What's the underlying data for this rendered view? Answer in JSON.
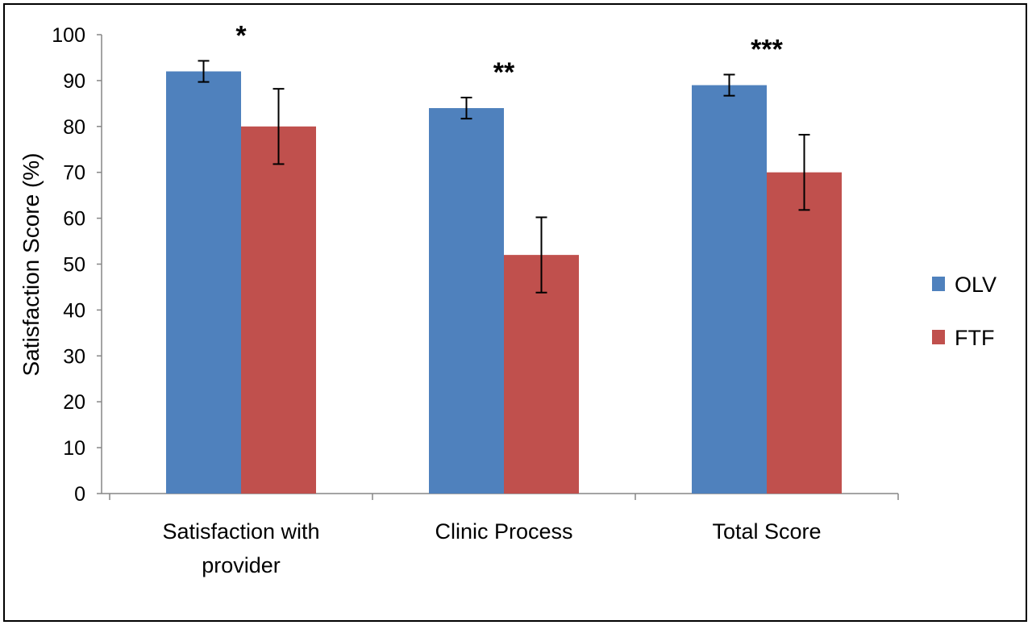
{
  "chart_data": {
    "type": "bar",
    "ylabel": "Satisfaction Score (%)",
    "ylim": [
      0,
      100
    ],
    "yticks": [
      0,
      10,
      20,
      30,
      40,
      50,
      60,
      70,
      80,
      90,
      100
    ],
    "categories": [
      "Satisfaction with provider",
      "Clinic Process",
      "Total Score"
    ],
    "category_lines": [
      [
        "Satisfaction with",
        "provider"
      ],
      [
        "Clinic Process"
      ],
      [
        "Total Score"
      ]
    ],
    "series": [
      {
        "name": "OLV",
        "color": "#4f81bd",
        "values": [
          92,
          84,
          89
        ],
        "errors": [
          2.3,
          2.3,
          2.3
        ]
      },
      {
        "name": "FTF",
        "color": "#c0504d",
        "values": [
          80,
          52,
          70
        ],
        "errors": [
          8.2,
          8.2,
          8.2
        ]
      }
    ],
    "annotations": [
      "*",
      "**",
      "***"
    ],
    "legend": "right",
    "grid": false
  }
}
